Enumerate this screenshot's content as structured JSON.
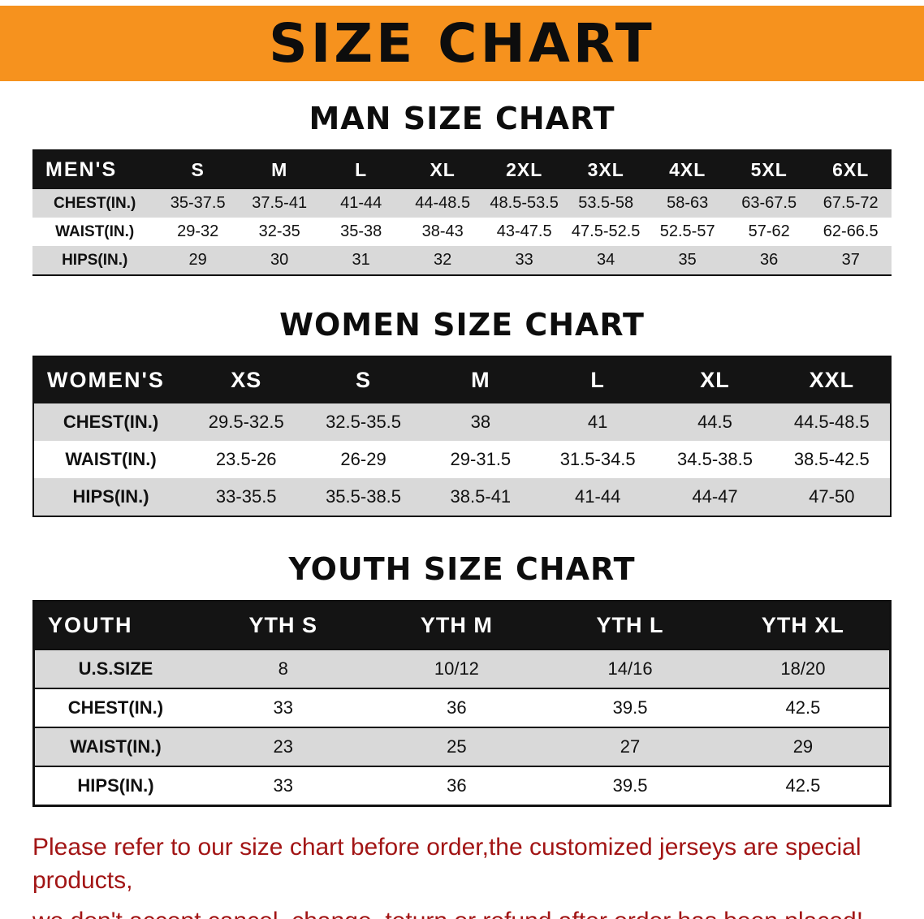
{
  "colors": {
    "banner-bg": "#F6921E",
    "header-bg": "#141414",
    "row-gray": "#D9D9D9",
    "footer-red": "#A21515"
  },
  "banner": {
    "title": "SIZE CHART"
  },
  "sections": [
    {
      "heading": "MAN SIZE CHART",
      "table": {
        "header": [
          "MEN'S",
          "S",
          "M",
          "L",
          "XL",
          "2XL",
          "3XL",
          "4XL",
          "5XL",
          "6XL"
        ],
        "rows": [
          [
            "CHEST(IN.)",
            "35-37.5",
            "37.5-41",
            "41-44",
            "44-48.5",
            "48.5-53.5",
            "53.5-58",
            "58-63",
            "63-67.5",
            "67.5-72"
          ],
          [
            "WAIST(IN.)",
            "29-32",
            "32-35",
            "35-38",
            "38-43",
            "43-47.5",
            "47.5-52.5",
            "52.5-57",
            "57-62",
            "62-66.5"
          ],
          [
            "HIPS(IN.)",
            "29",
            "30",
            "31",
            "32",
            "33",
            "34",
            "35",
            "36",
            "37"
          ]
        ]
      }
    },
    {
      "heading": "WOMEN SIZE CHART",
      "table": {
        "header": [
          "WOMEN'S",
          "XS",
          "S",
          "M",
          "L",
          "XL",
          "XXL"
        ],
        "rows": [
          [
            "CHEST(IN.)",
            "29.5-32.5",
            "32.5-35.5",
            "38",
            "41",
            "44.5",
            "44.5-48.5"
          ],
          [
            "WAIST(IN.)",
            "23.5-26",
            "26-29",
            "29-31.5",
            "31.5-34.5",
            "34.5-38.5",
            "38.5-42.5"
          ],
          [
            "HIPS(IN.)",
            "33-35.5",
            "35.5-38.5",
            "38.5-41",
            "41-44",
            "44-47",
            "47-50"
          ]
        ]
      }
    },
    {
      "heading": "YOUTH SIZE CHART",
      "table": {
        "header": [
          "YOUTH",
          "YTH S",
          "YTH M",
          "YTH L",
          "YTH XL"
        ],
        "rows": [
          [
            "U.S.SIZE",
            "8",
            "10/12",
            "14/16",
            "18/20"
          ],
          [
            "CHEST(IN.)",
            "33",
            "36",
            "39.5",
            "42.5"
          ],
          [
            "WAIST(IN.)",
            "23",
            "25",
            "27",
            "29"
          ],
          [
            "HIPS(IN.)",
            "33",
            "36",
            "39.5",
            "42.5"
          ]
        ]
      }
    }
  ],
  "footer": {
    "line1": "Please refer to our size chart before order,the customized jerseys are special products,",
    "line2": "we don't accept cancel, change, teturn or refund after order has been placed!"
  }
}
